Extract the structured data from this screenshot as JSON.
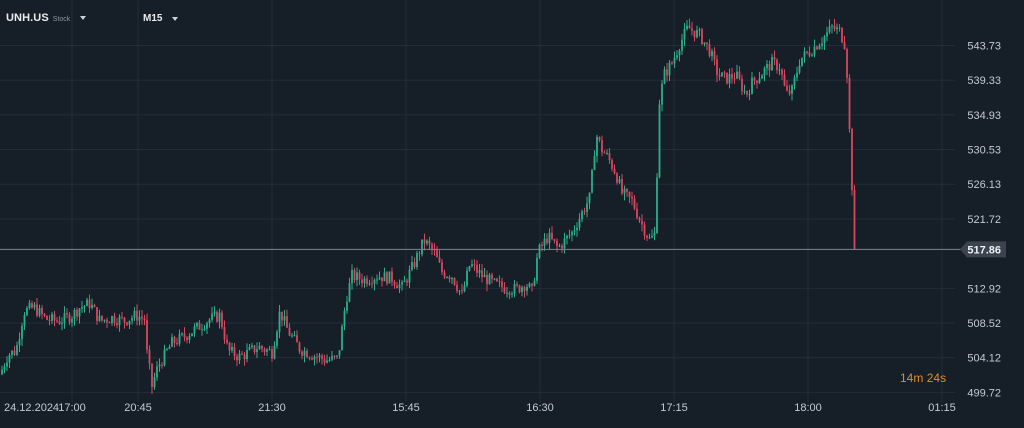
{
  "header": {
    "symbol": "UNH.US",
    "symbol_type": "Stock",
    "timeframe": "M15"
  },
  "timer": {
    "minutes": "14",
    "m_unit": "m",
    "seconds": "24",
    "s_unit": "s"
  },
  "colors": {
    "background": "#161e27",
    "grid": "#232d38",
    "up": "#2bb08a",
    "down": "#d8485f",
    "text": "#c3cad3",
    "price_line": "#7c8793",
    "price_tag_bg": "#3a434e"
  },
  "chart_data": {
    "type": "candlestick",
    "ylim": [
      498.5,
      549.5
    ],
    "y_ticks": [
      543.73,
      539.33,
      534.93,
      530.53,
      526.13,
      521.72,
      517.86,
      512.92,
      508.52,
      504.12,
      499.72
    ],
    "current_price": 517.86,
    "x_ticks": [
      "24.12.2024",
      "17:00",
      "20:45",
      "21:30",
      "15:45",
      "16:30",
      "17:15",
      "18:00",
      "01:15"
    ],
    "grid": true,
    "close_path": [
      [
        0,
        502.0
      ],
      [
        8,
        504.5
      ],
      [
        16,
        505.0
      ],
      [
        24,
        510.0
      ],
      [
        34,
        510.5
      ],
      [
        46,
        509.0
      ],
      [
        60,
        508.8
      ],
      [
        72,
        509.5
      ],
      [
        80,
        510.5
      ],
      [
        90,
        511.0
      ],
      [
        100,
        508.8
      ],
      [
        112,
        509.2
      ],
      [
        124,
        508.8
      ],
      [
        136,
        509.5
      ],
      [
        145,
        509.0
      ],
      [
        146,
        505.5
      ],
      [
        152,
        500.5
      ],
      [
        158,
        503.0
      ],
      [
        172,
        506.0
      ],
      [
        184,
        506.8
      ],
      [
        198,
        508.0
      ],
      [
        210,
        509.0
      ],
      [
        220,
        509.5
      ],
      [
        228,
        505.0
      ],
      [
        240,
        504.2
      ],
      [
        258,
        505.5
      ],
      [
        272,
        504.8
      ],
      [
        280,
        510.0
      ],
      [
        288,
        507.5
      ],
      [
        300,
        505.2
      ],
      [
        312,
        504.5
      ],
      [
        326,
        503.8
      ],
      [
        338,
        504.0
      ],
      [
        346,
        511.5
      ],
      [
        352,
        514.5
      ],
      [
        364,
        514.0
      ],
      [
        378,
        514.5
      ],
      [
        392,
        514.2
      ],
      [
        402,
        513.0
      ],
      [
        414,
        516.0
      ],
      [
        424,
        519.0
      ],
      [
        434,
        517.5
      ],
      [
        442,
        515.0
      ],
      [
        452,
        514.5
      ],
      [
        462,
        512.0
      ],
      [
        470,
        516.0
      ],
      [
        482,
        514.5
      ],
      [
        494,
        513.5
      ],
      [
        504,
        513.0
      ],
      [
        516,
        512.8
      ],
      [
        526,
        513.5
      ],
      [
        532,
        512.5
      ],
      [
        538,
        517.5
      ],
      [
        548,
        519.5
      ],
      [
        558,
        518.0
      ],
      [
        572,
        520.0
      ],
      [
        582,
        522.5
      ],
      [
        590,
        524.5
      ],
      [
        596,
        532.5
      ],
      [
        602,
        530.5
      ],
      [
        608,
        529.5
      ],
      [
        616,
        527.5
      ],
      [
        622,
        525.0
      ],
      [
        632,
        524.0
      ],
      [
        642,
        521.0
      ],
      [
        650,
        519.0
      ],
      [
        656,
        520.0
      ],
      [
        658,
        535.5
      ],
      [
        664,
        540.0
      ],
      [
        672,
        541.5
      ],
      [
        680,
        544.0
      ],
      [
        688,
        546.0
      ],
      [
        700,
        545.0
      ],
      [
        710,
        543.0
      ],
      [
        718,
        540.0
      ],
      [
        726,
        539.5
      ],
      [
        736,
        540.0
      ],
      [
        746,
        537.5
      ],
      [
        752,
        539.0
      ],
      [
        760,
        540.0
      ],
      [
        772,
        541.5
      ],
      [
        780,
        541.0
      ],
      [
        786,
        537.5
      ],
      [
        792,
        538.0
      ],
      [
        800,
        542.0
      ],
      [
        810,
        543.0
      ],
      [
        822,
        544.5
      ],
      [
        832,
        546.0
      ],
      [
        840,
        545.5
      ],
      [
        846,
        543.5
      ],
      [
        848,
        537.0
      ],
      [
        852,
        526.0
      ],
      [
        856,
        518.0
      ]
    ]
  }
}
